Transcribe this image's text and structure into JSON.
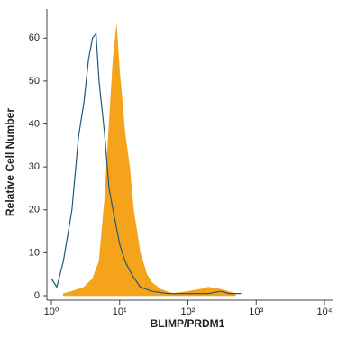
{
  "chart_data": {
    "type": "area",
    "x_label": "BLIMP/PRDM1",
    "y_label": "Relative Cell Number",
    "xscale": "log",
    "xlim": [
      1,
      10000
    ],
    "ylim": [
      0,
      63
    ],
    "xticks": [
      {
        "value": 1,
        "label": "10⁰"
      },
      {
        "value": 10,
        "label": "10¹"
      },
      {
        "value": 100,
        "label": "10²"
      },
      {
        "value": 1000,
        "label": "10³"
      },
      {
        "value": 10000,
        "label": "10⁴"
      }
    ],
    "yticks": [
      0,
      10,
      20,
      30,
      40,
      50,
      60
    ],
    "series": [
      {
        "color": "#f5a31a",
        "filled": true,
        "x": [
          1.5,
          2,
          3,
          4,
          5,
          6,
          7,
          8,
          9,
          10,
          11,
          12,
          14,
          16,
          20,
          25,
          30,
          40,
          60,
          100,
          150,
          200,
          300,
          500
        ],
        "values": [
          0.5,
          1,
          2,
          4,
          8,
          22,
          40,
          55,
          63,
          52,
          45,
          38,
          30,
          20,
          10,
          5,
          3,
          1.5,
          0.5,
          1,
          1.5,
          2,
          1.5,
          0.5
        ]
      },
      {
        "color": "#1f5a7a",
        "filled": false,
        "x": [
          1,
          1.2,
          1.5,
          2,
          2.5,
          3,
          3.5,
          4,
          4.5,
          5,
          6,
          7,
          8,
          10,
          12,
          15,
          20,
          30,
          50,
          100,
          200,
          300,
          400,
          600
        ],
        "values": [
          4,
          2,
          8,
          20,
          37,
          45,
          55,
          60,
          61,
          50,
          38,
          25,
          20,
          12,
          8,
          5,
          2,
          1,
          0.5,
          0.5,
          0.5,
          1,
          0.5,
          0.5
        ]
      }
    ]
  }
}
